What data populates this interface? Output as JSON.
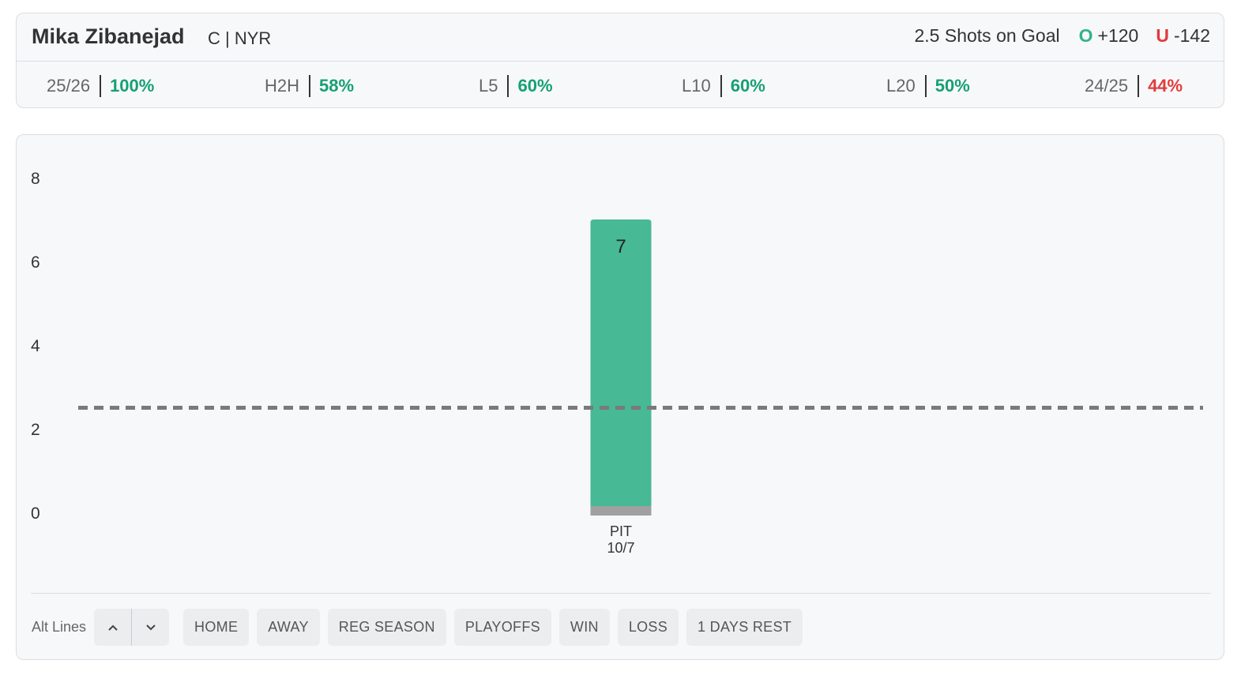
{
  "player": {
    "name": "Mika Zibanejad",
    "meta": "C | NYR"
  },
  "prop": {
    "line_text": "2.5 Shots on Goal",
    "over_letter": "O",
    "over_odds": "+120",
    "under_letter": "U",
    "under_odds": "-142"
  },
  "stats": [
    {
      "label": "25/26",
      "value": "100%",
      "status": "good"
    },
    {
      "label": "H2H",
      "value": "58%",
      "status": "good"
    },
    {
      "label": "L5",
      "value": "60%",
      "status": "good"
    },
    {
      "label": "L10",
      "value": "60%",
      "status": "good"
    },
    {
      "label": "L20",
      "value": "50%",
      "status": "good"
    },
    {
      "label": "24/25",
      "value": "44%",
      "status": "bad"
    }
  ],
  "chart_data": {
    "type": "bar",
    "y_ticks": [
      0,
      2,
      4,
      6,
      8
    ],
    "ylim": [
      0,
      8
    ],
    "threshold": 2.5,
    "bars": [
      {
        "value": 7,
        "opponent": "PIT",
        "date": "10/7"
      }
    ],
    "colors": {
      "bar_over": "#47b994",
      "bar_base": "#a0a0a0",
      "threshold_line": "#7a7a7a"
    }
  },
  "controls": {
    "alt_lines_label": "Alt Lines",
    "filters": [
      "HOME",
      "AWAY",
      "REG SEASON",
      "PLAYOFFS",
      "WIN",
      "LOSS",
      "1 DAYS REST"
    ]
  },
  "colors": {
    "good": "#16a072",
    "bad": "#e23b3b",
    "over": "#2fb583",
    "under": "#e23b3b"
  }
}
